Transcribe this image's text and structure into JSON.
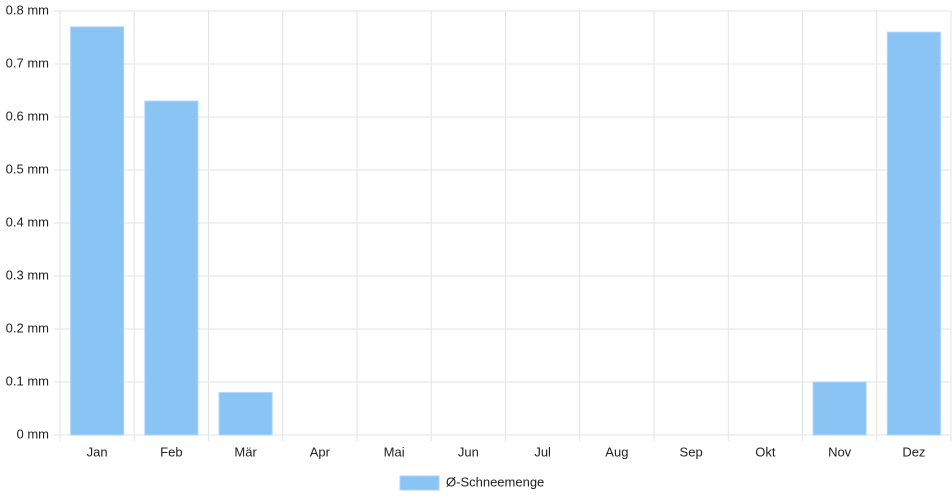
{
  "chart_data": {
    "type": "bar",
    "categories": [
      "Jan",
      "Feb",
      "Mär",
      "Apr",
      "Mai",
      "Jun",
      "Jul",
      "Aug",
      "Sep",
      "Okt",
      "Nov",
      "Dez"
    ],
    "series": [
      {
        "name": "Ø-Schneemenge",
        "color": "#89c4f4",
        "values": [
          0.77,
          0.63,
          0.08,
          0,
          0,
          0,
          0,
          0,
          0,
          0,
          0.1,
          0.76
        ]
      }
    ],
    "ylim": [
      0,
      0.8
    ],
    "yticks": [
      {
        "value": 0,
        "label": "0 mm"
      },
      {
        "value": 0.1,
        "label": "0.1 mm"
      },
      {
        "value": 0.2,
        "label": "0.2 mm"
      },
      {
        "value": 0.3,
        "label": "0.3 mm"
      },
      {
        "value": 0.4,
        "label": "0.4 mm"
      },
      {
        "value": 0.5,
        "label": "0.5 mm"
      },
      {
        "value": 0.6,
        "label": "0.6 mm"
      },
      {
        "value": 0.7,
        "label": "0.7 mm"
      },
      {
        "value": 0.8,
        "label": "0.8 mm"
      }
    ],
    "grid": true,
    "legend": "bottom"
  }
}
